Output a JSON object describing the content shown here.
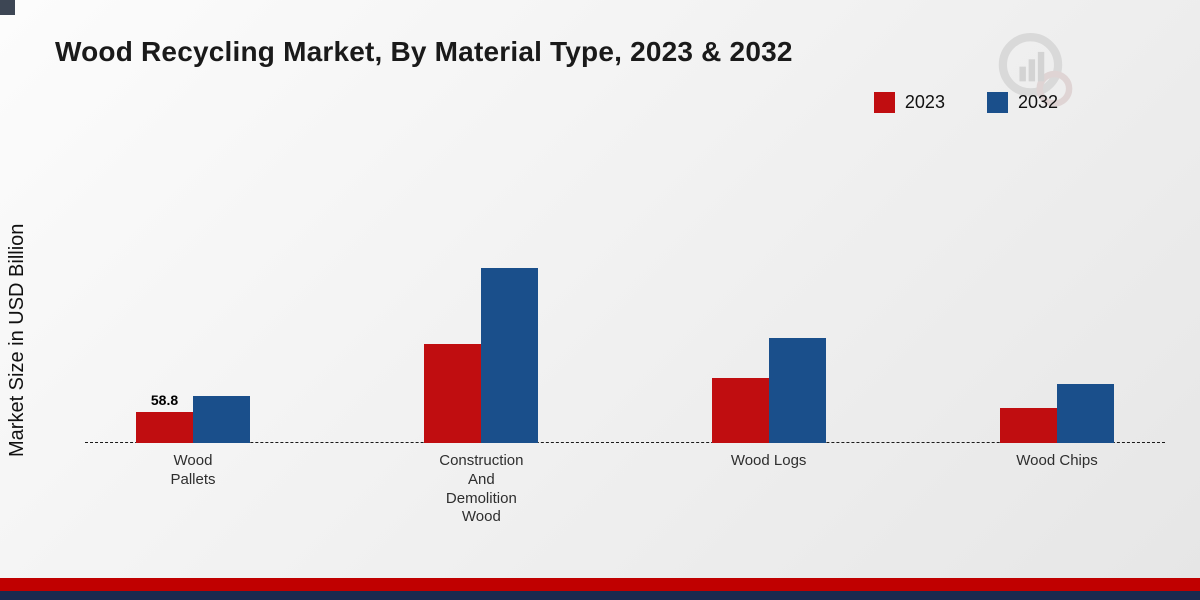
{
  "page": {
    "title": "Wood Recycling Market, By Material Type, 2023 & 2032",
    "ylabel": "Market Size in USD Billion"
  },
  "colors": {
    "series_2023": "#c00d10",
    "series_2032": "#1a4f8b",
    "strip_red": "#c00000",
    "strip_navy": "#1b2a4f"
  },
  "legend": {
    "items": [
      {
        "label": "2023",
        "color": "#c00d10"
      },
      {
        "label": "2032",
        "color": "#1a4f8b"
      }
    ]
  },
  "chart_data": {
    "type": "bar",
    "title": "Wood Recycling Market, By Material Type, 2023 & 2032",
    "xlabel": "",
    "ylabel": "Market Size in USD Billion",
    "legend_position": "top-right",
    "grid": false,
    "baseline_style": "dashed",
    "categories": [
      "Wood Pallets",
      "Construction And Demolition Wood",
      "Wood Logs",
      "Wood Chips"
    ],
    "category_display": [
      "Wood\nPallets",
      "Construction\nAnd\nDemolition\nWood",
      "Wood Logs",
      "Wood Chips"
    ],
    "series": [
      {
        "name": "2023",
        "color": "#c00d10",
        "values": [
          58.8,
          187.5,
          123.0,
          66.5
        ]
      },
      {
        "name": "2032",
        "color": "#1a4f8b",
        "values": [
          89.5,
          332.0,
          199.5,
          112.0
        ]
      }
    ],
    "labeled_points": [
      {
        "category": "Wood Pallets",
        "series": "2023",
        "label": "58.8"
      }
    ],
    "value_note": "Only the 58.8 label is shown in the image; other values are estimated from bar heights."
  }
}
